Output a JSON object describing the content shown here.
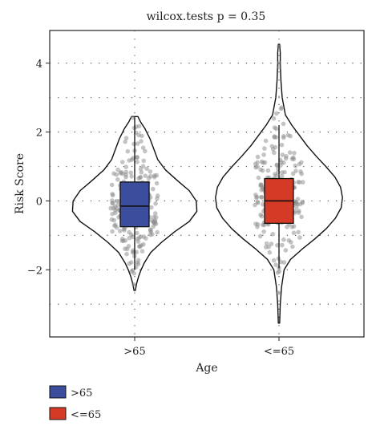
{
  "chart_data": {
    "type": "violin",
    "title": "wilcox.tests p = 0.35",
    "xlabel": "Age",
    "ylabel": "Risk Score",
    "ylim": [
      -3.95,
      4.95
    ],
    "yticks": [
      -2,
      0,
      2,
      4
    ],
    "grid": true,
    "legend_position": "bottom-left",
    "categories": [
      ">65",
      "<=65"
    ],
    "series": [
      {
        "name": ">65",
        "color": "#3b4d9c",
        "box": {
          "q1": -0.75,
          "median": -0.15,
          "q3": 0.55,
          "whisker_low": -2.0,
          "whisker_high": 2.45
        },
        "violin": {
          "y": [
            -2.6,
            -2.4,
            -2.2,
            -2.0,
            -1.8,
            -1.5,
            -1.2,
            -0.9,
            -0.6,
            -0.3,
            0.0,
            0.3,
            0.6,
            0.9,
            1.2,
            1.5,
            1.8,
            2.1,
            2.3,
            2.45
          ],
          "width": [
            0.01,
            0.03,
            0.06,
            0.1,
            0.15,
            0.25,
            0.42,
            0.62,
            0.85,
            0.97,
            0.96,
            0.85,
            0.66,
            0.48,
            0.36,
            0.3,
            0.24,
            0.16,
            0.09,
            0.05
          ]
        }
      },
      {
        "name": "<=65",
        "color": "#d53a26",
        "box": {
          "q1": -0.65,
          "median": 0.0,
          "q3": 0.65,
          "whisker_low": -1.95,
          "whisker_high": 2.2
        },
        "violin": {
          "y": [
            -3.55,
            -3.0,
            -2.5,
            -2.0,
            -1.7,
            -1.4,
            -1.1,
            -0.8,
            -0.5,
            -0.2,
            0.1,
            0.4,
            0.7,
            1.0,
            1.3,
            1.6,
            1.9,
            2.2,
            2.5,
            3.0,
            3.5,
            4.0,
            4.3,
            4.55
          ],
          "width": [
            0.01,
            0.02,
            0.04,
            0.08,
            0.18,
            0.36,
            0.56,
            0.74,
            0.88,
            0.97,
            0.99,
            0.96,
            0.87,
            0.73,
            0.58,
            0.44,
            0.32,
            0.2,
            0.1,
            0.05,
            0.03,
            0.02,
            0.02,
            0.01
          ]
        }
      }
    ]
  }
}
